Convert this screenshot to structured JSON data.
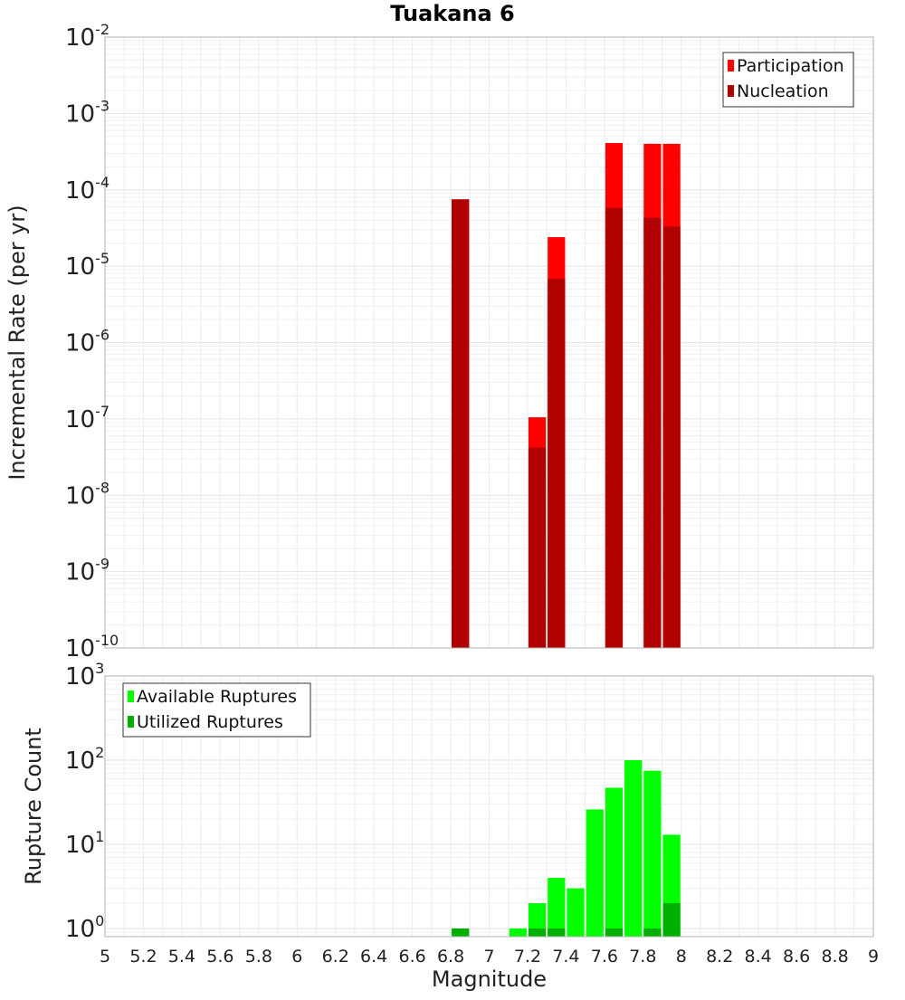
{
  "chart_data": [
    {
      "type": "bar",
      "title": "Tuakana 6",
      "xlabel": "",
      "ylabel": "Incremental Rate (per yr)",
      "yscale": "log",
      "xlim": [
        5,
        9
      ],
      "ylim": [
        1e-10,
        0.01
      ],
      "ytick_base": "10",
      "ytick_exponents": [
        "-10",
        "-9",
        "-8",
        "-7",
        "-6",
        "-5",
        "-4",
        "-3",
        "-2"
      ],
      "bar_width": 0.1,
      "grid": true,
      "legend_position": "top-right",
      "series": [
        {
          "name": "Participation",
          "color": "#ff0000",
          "x": [
            6.85,
            7.25,
            7.35,
            7.65,
            7.85,
            7.95
          ],
          "values": [
            7.5e-05,
            1.05e-07,
            2.4e-05,
            0.00041,
            0.0004,
            0.0004
          ]
        },
        {
          "name": "Nucleation",
          "color": "#b00000",
          "x": [
            6.85,
            7.25,
            7.35,
            7.65,
            7.85,
            7.95
          ],
          "values": [
            7.5e-05,
            4.2e-08,
            6.8e-06,
            5.8e-05,
            4.3e-05,
            3.3e-05
          ]
        }
      ]
    },
    {
      "type": "bar",
      "title": "",
      "xlabel": "Magnitude",
      "ylabel": "Rupture Count",
      "yscale": "log",
      "xlim": [
        5,
        9
      ],
      "ylim": [
        0.8,
        1000
      ],
      "ytick_base": "10",
      "ytick_exponents": [
        "0",
        "1",
        "2",
        "3"
      ],
      "xticks": [
        "5",
        "5.2",
        "5.4",
        "5.6",
        "5.8",
        "6",
        "6.2",
        "6.4",
        "6.6",
        "6.8",
        "7",
        "7.2",
        "7.4",
        "7.6",
        "7.8",
        "8",
        "8.2",
        "8.4",
        "8.6",
        "8.8",
        "9"
      ],
      "bar_width": 0.1,
      "grid": true,
      "legend_position": "top-left",
      "series": [
        {
          "name": "Available Ruptures",
          "color": "#00ff00",
          "x": [
            6.85,
            7.15,
            7.25,
            7.35,
            7.45,
            7.55,
            7.65,
            7.75,
            7.85,
            7.95
          ],
          "values": [
            1,
            1,
            2,
            4,
            3,
            26,
            47,
            100,
            75,
            13
          ]
        },
        {
          "name": "Utilized Ruptures",
          "color": "#00b000",
          "x": [
            6.85,
            7.25,
            7.35,
            7.65,
            7.85,
            7.95
          ],
          "values": [
            1,
            1,
            1,
            1,
            1,
            2
          ]
        }
      ]
    }
  ]
}
